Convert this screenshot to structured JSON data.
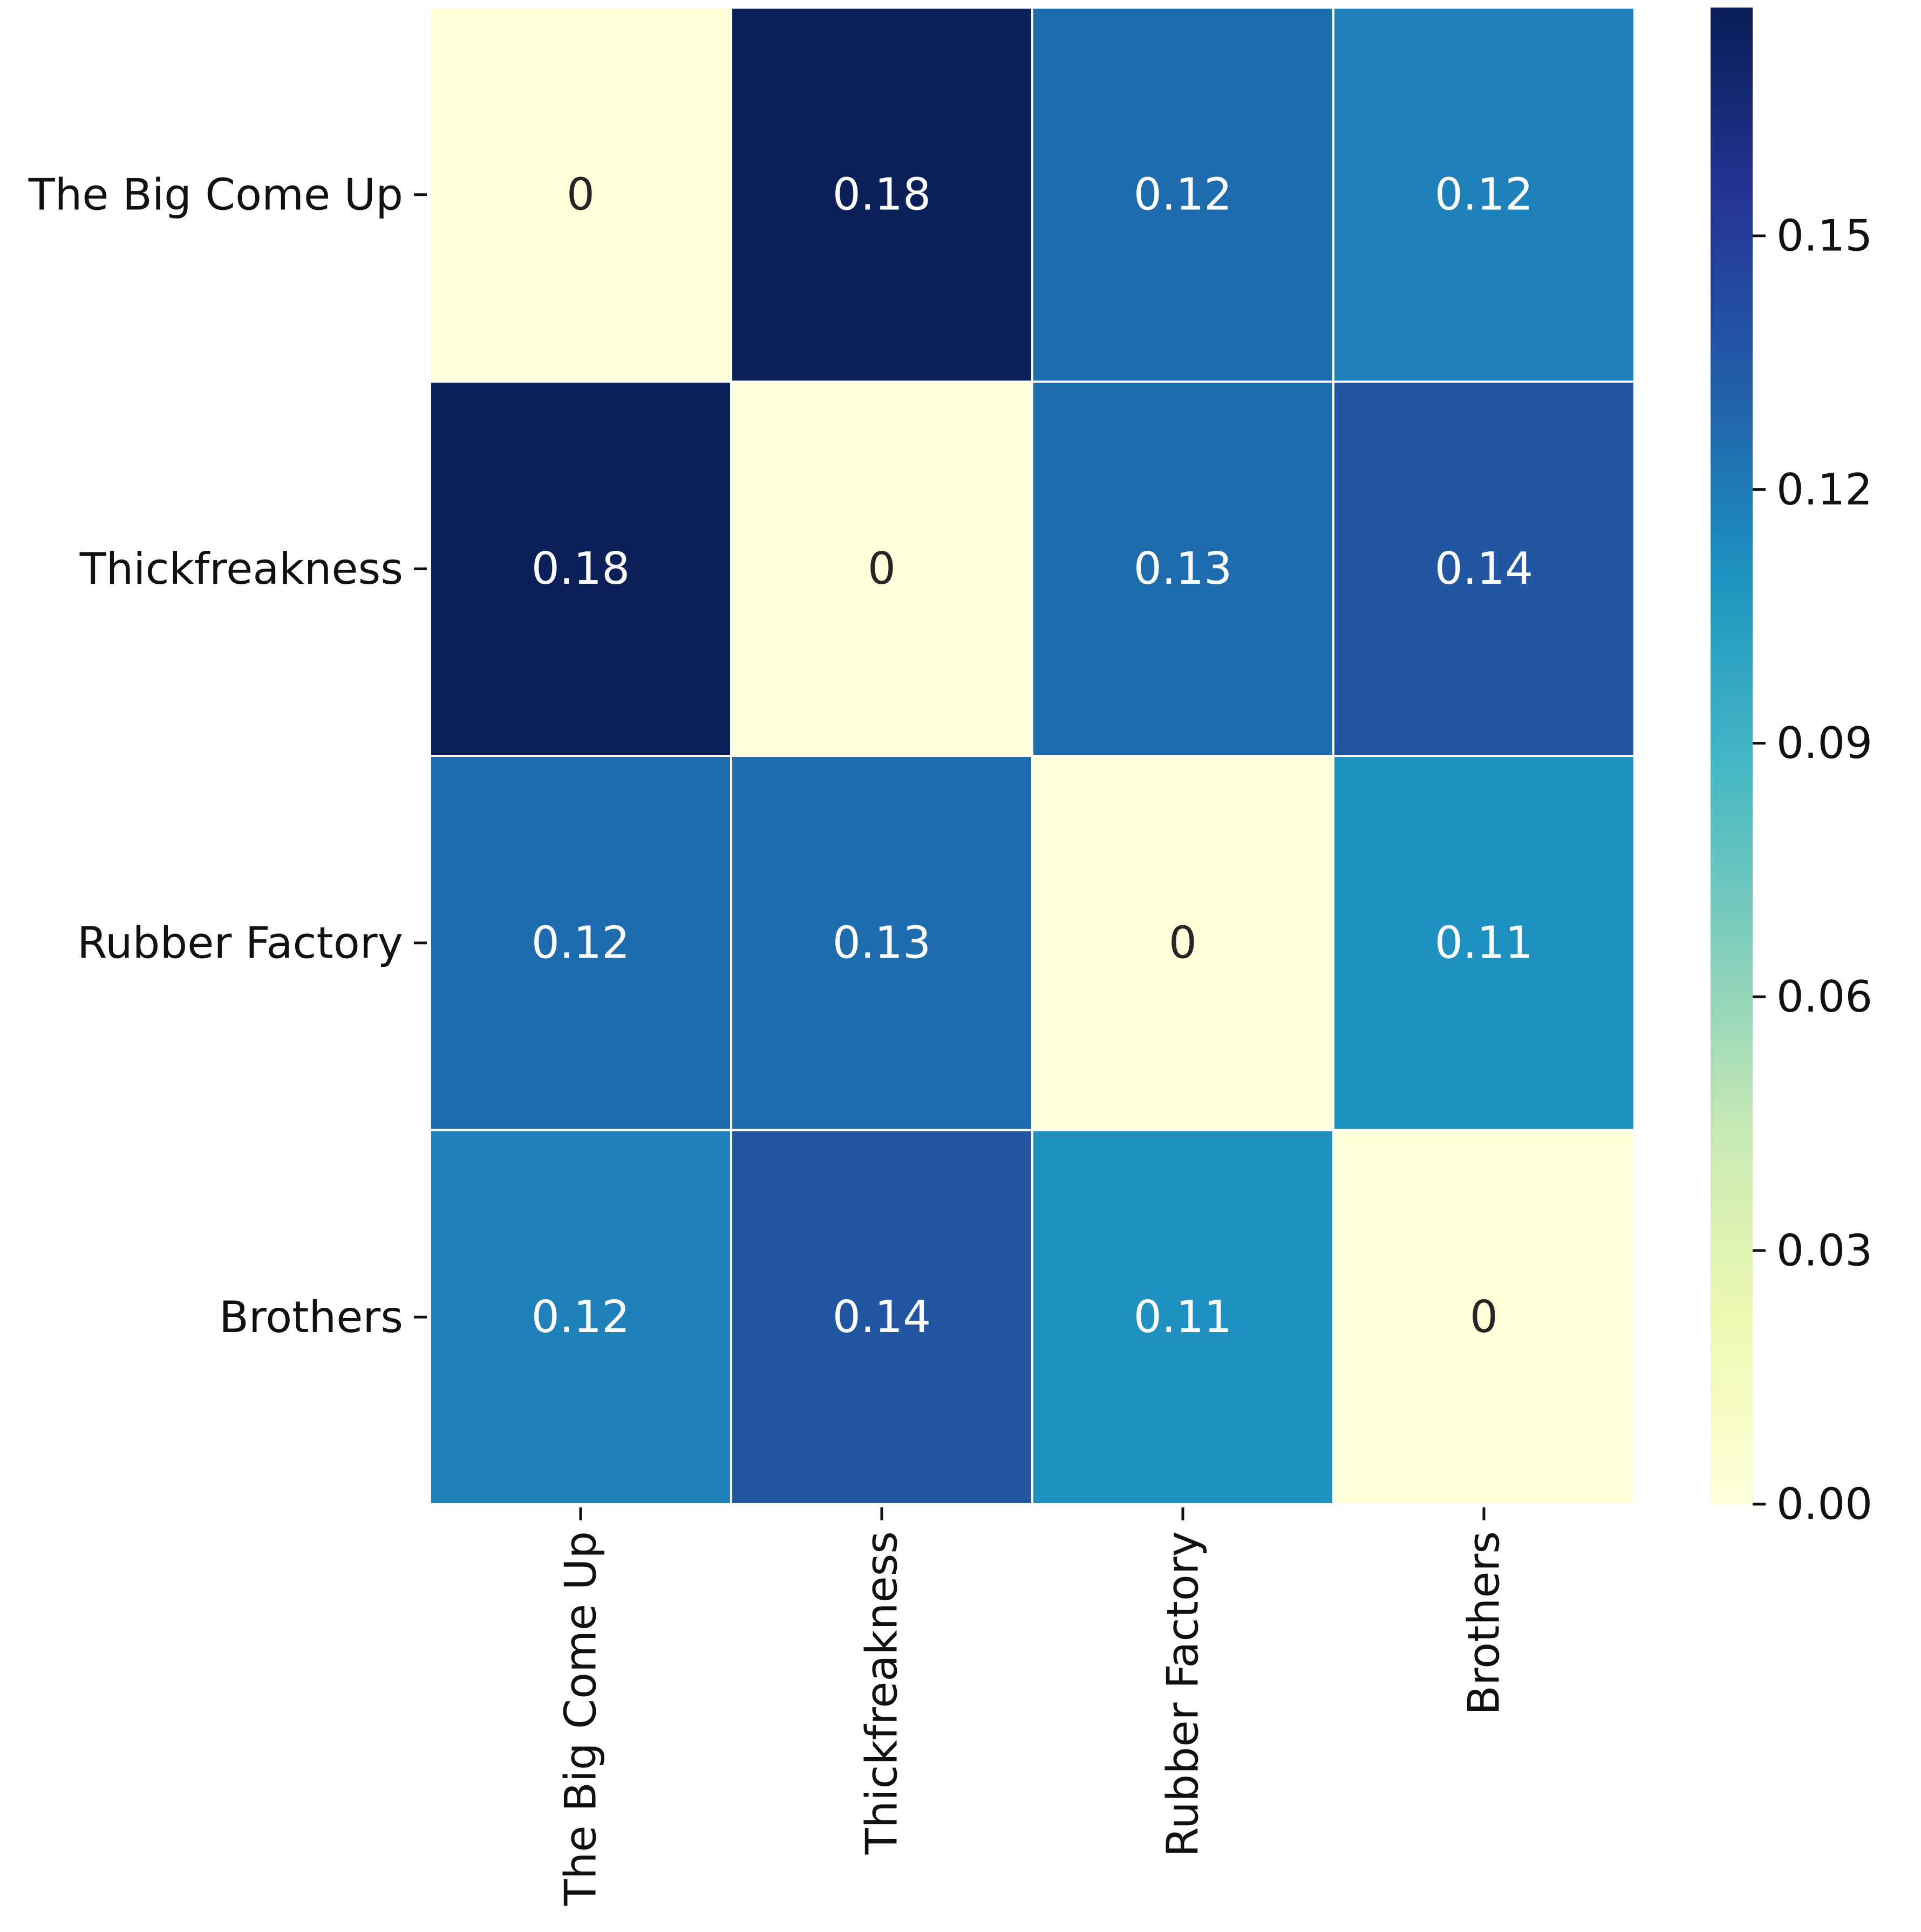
{
  "chart_data": {
    "type": "heatmap",
    "row_labels": [
      "The Big Come Up",
      "Thickfreakness",
      "Rubber Factory",
      "Brothers"
    ],
    "col_labels": [
      "The Big Come Up",
      "Thickfreakness",
      "Rubber Factory",
      "Brothers"
    ],
    "values": [
      [
        0,
        0.18,
        0.12,
        0.12
      ],
      [
        0.18,
        0,
        0.13,
        0.14
      ],
      [
        0.12,
        0.13,
        0,
        0.11
      ],
      [
        0.12,
        0.14,
        0.11,
        0
      ]
    ],
    "cell_colors": [
      [
        "#ffffd9",
        "#0b1f58",
        "#1e6bae",
        "#1f81b9"
      ],
      [
        "#0b1f58",
        "#ffffd9",
        "#1e6bae",
        "#2256a3"
      ],
      [
        "#1e6bae",
        "#1e6bae",
        "#ffffd9",
        "#1e91c0"
      ],
      [
        "#1f81b9",
        "#2256a3",
        "#1e91c0",
        "#ffffd9"
      ]
    ],
    "annotation_colors": {
      "light": "#ffffff",
      "dark": "#262626"
    },
    "colorbar": {
      "min": 0.0,
      "max": 0.177,
      "ticks": [
        "0.00",
        "0.03",
        "0.06",
        "0.09",
        "0.12",
        "0.15"
      ],
      "tick_values": [
        0.0,
        0.03,
        0.06,
        0.09,
        0.12,
        0.15
      ],
      "colormap": "YlGnBu",
      "stops": [
        "#ffffd9",
        "#edf8b1",
        "#c7e9b4",
        "#7fcdbb",
        "#41b6c4",
        "#1d91c0",
        "#225ea8",
        "#253494",
        "#081d58"
      ]
    },
    "title": "",
    "xlabel": "",
    "ylabel": "",
    "grid": false,
    "legend": "right"
  }
}
